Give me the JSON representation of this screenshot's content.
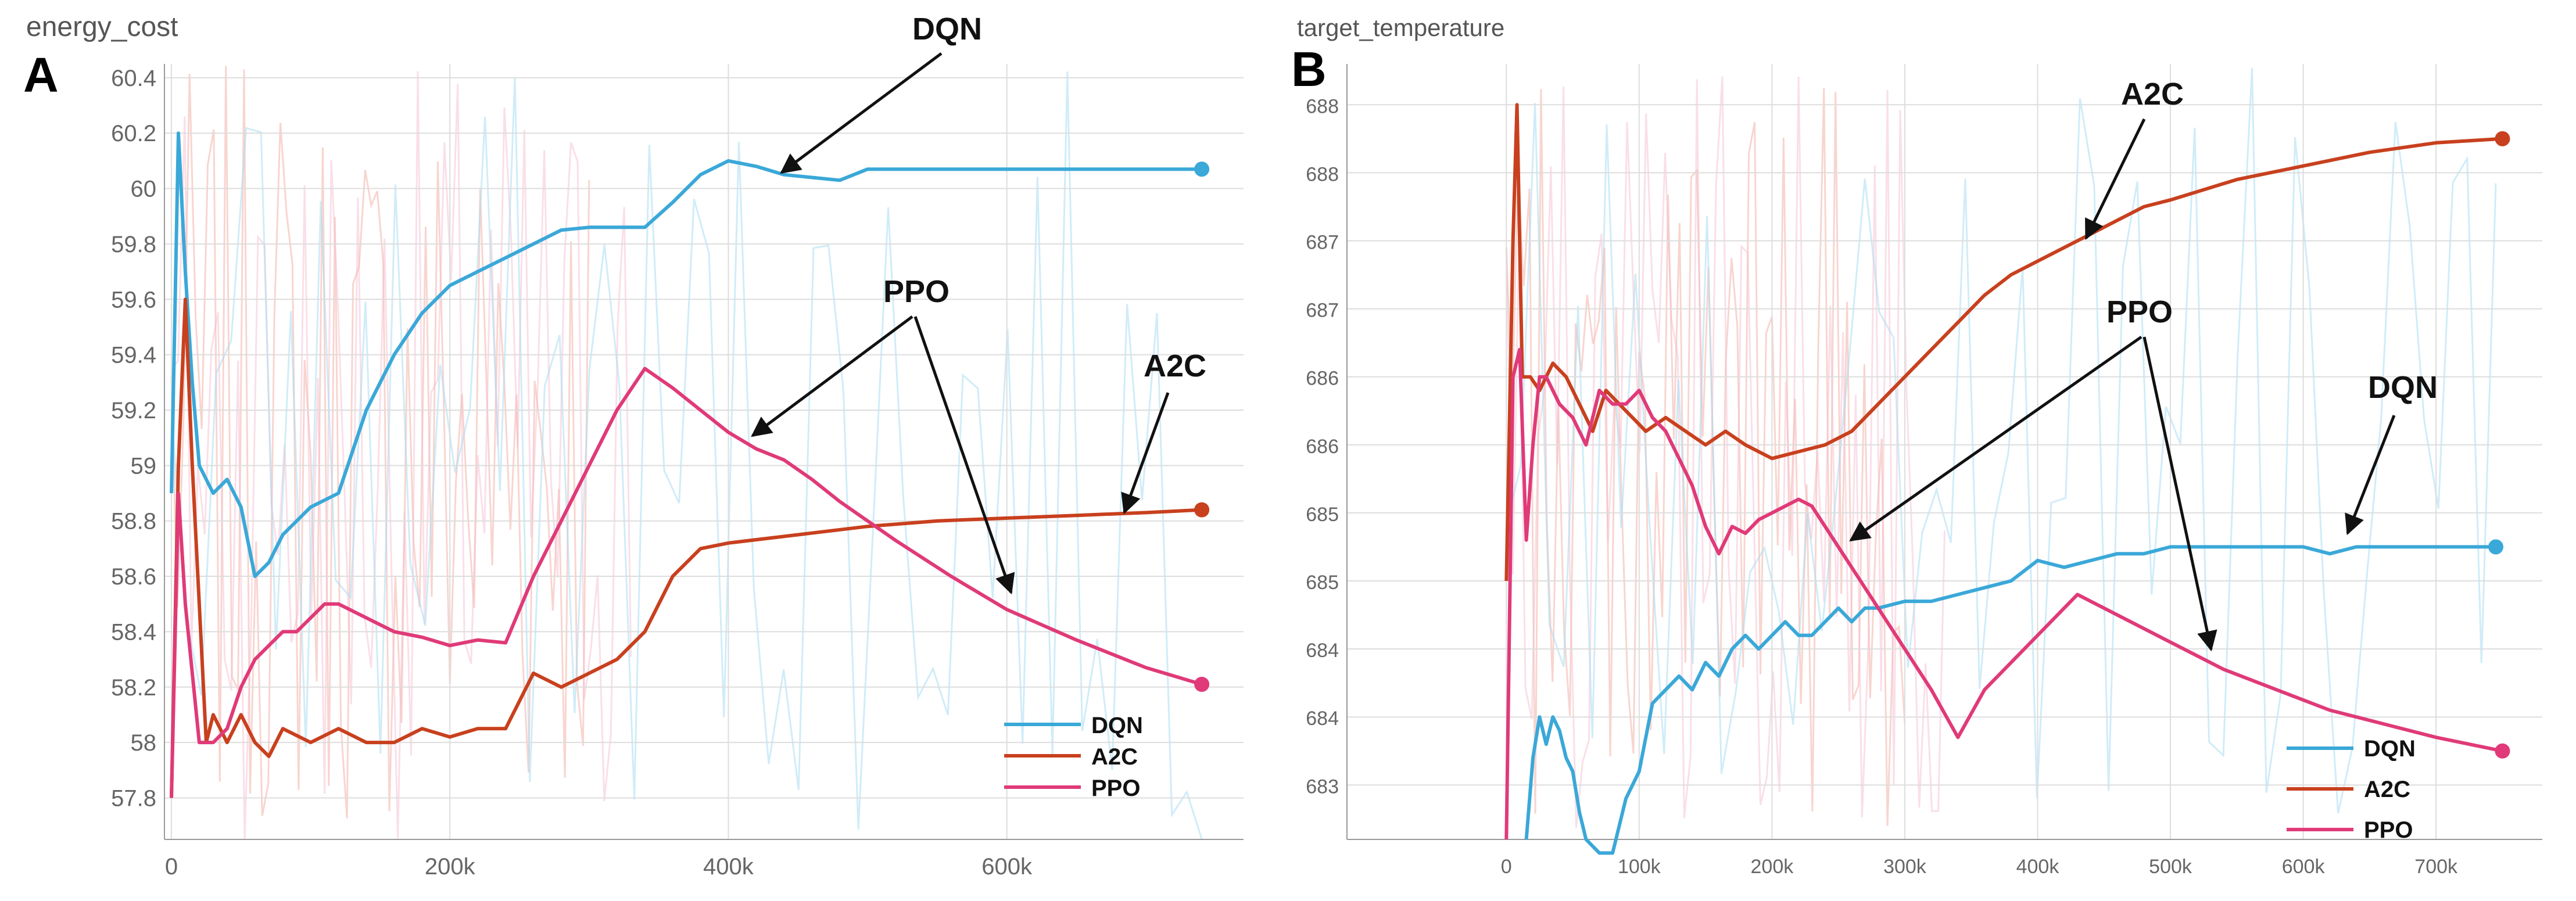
{
  "figure": {
    "panels": [
      "A",
      "B"
    ]
  },
  "chart_data": [
    {
      "panel": "A",
      "type": "line",
      "title": "energy_cost",
      "xlabel": "",
      "ylabel": "",
      "xlim": [
        -5000,
        770000
      ],
      "ylim": [
        57.65,
        60.45
      ],
      "x_tick_values": [
        0,
        200000,
        400000,
        600000
      ],
      "x_tick_labels": [
        "0",
        "200k",
        "400k",
        "600k"
      ],
      "y_tick_values": [
        57.8,
        58,
        58.2,
        58.4,
        58.6,
        58.8,
        59,
        59.2,
        59.4,
        59.6,
        59.8,
        60,
        60.2,
        60.4
      ],
      "y_tick_labels": [
        "57.8",
        "58",
        "58.2",
        "58.4",
        "58.6",
        "58.8",
        "59",
        "59.2",
        "59.4",
        "59.6",
        "59.8",
        "60",
        "60.2",
        "60.4"
      ],
      "grid": true,
      "legend": "bottom-right",
      "series": [
        {
          "name": "DQN",
          "color": "#3aa8d8",
          "x": [
            0,
            5000,
            10000,
            15000,
            20000,
            25000,
            30000,
            40000,
            50000,
            60000,
            70000,
            80000,
            90000,
            100000,
            120000,
            140000,
            160000,
            180000,
            200000,
            220000,
            240000,
            260000,
            280000,
            300000,
            320000,
            340000,
            360000,
            380000,
            400000,
            420000,
            440000,
            460000,
            480000,
            500000,
            550000,
            600000,
            650000,
            700000,
            740000
          ],
          "y": [
            58.9,
            60.2,
            59.7,
            59.3,
            59.0,
            58.95,
            58.9,
            58.95,
            58.85,
            58.6,
            58.65,
            58.75,
            58.8,
            58.85,
            58.9,
            59.2,
            59.4,
            59.55,
            59.65,
            59.7,
            59.75,
            59.8,
            59.85,
            59.86,
            59.86,
            59.86,
            59.95,
            60.05,
            60.1,
            60.08,
            60.05,
            60.04,
            60.03,
            60.07,
            60.07,
            60.07,
            60.07,
            60.07,
            60.07
          ]
        },
        {
          "name": "A2C",
          "color": "#c8401e",
          "x": [
            0,
            5000,
            10000,
            15000,
            20000,
            25000,
            30000,
            40000,
            50000,
            60000,
            70000,
            80000,
            100000,
            120000,
            140000,
            160000,
            180000,
            200000,
            220000,
            240000,
            260000,
            280000,
            300000,
            320000,
            340000,
            360000,
            380000,
            400000,
            450000,
            500000,
            550000,
            600000,
            650000,
            700000,
            740000
          ],
          "y": [
            57.8,
            59.0,
            59.6,
            59.0,
            58.5,
            58.0,
            58.1,
            58.0,
            58.1,
            58.0,
            57.95,
            58.05,
            58.0,
            58.05,
            58.0,
            58.0,
            58.05,
            58.02,
            58.05,
            58.05,
            58.25,
            58.2,
            58.25,
            58.3,
            58.4,
            58.6,
            58.7,
            58.72,
            58.75,
            58.78,
            58.8,
            58.81,
            58.82,
            58.83,
            58.84
          ]
        },
        {
          "name": "PPO",
          "color": "#e03a78",
          "x": [
            0,
            5000,
            10000,
            20000,
            30000,
            40000,
            50000,
            60000,
            70000,
            80000,
            90000,
            100000,
            110000,
            120000,
            140000,
            160000,
            180000,
            200000,
            220000,
            240000,
            260000,
            280000,
            300000,
            320000,
            340000,
            360000,
            380000,
            400000,
            420000,
            440000,
            460000,
            480000,
            500000,
            520000,
            560000,
            600000,
            650000,
            700000,
            740000
          ],
          "y": [
            57.8,
            58.9,
            58.5,
            58.0,
            58.0,
            58.05,
            58.2,
            58.3,
            58.35,
            58.4,
            58.4,
            58.45,
            58.5,
            58.5,
            58.45,
            58.4,
            58.38,
            58.35,
            58.37,
            58.36,
            58.6,
            58.8,
            59.0,
            59.2,
            59.35,
            59.28,
            59.2,
            59.12,
            59.06,
            59.02,
            58.95,
            58.87,
            58.8,
            58.73,
            58.6,
            58.48,
            58.37,
            58.27,
            58.21
          ]
        }
      ],
      "annotations": [
        {
          "text": "DQN"
        },
        {
          "text": "PPO"
        },
        {
          "text": "A2C"
        }
      ]
    },
    {
      "panel": "B",
      "type": "line",
      "title": "target_temperature",
      "xlabel": "",
      "ylabel": "",
      "xlim": [
        -120000,
        780000
      ],
      "ylim": [
        682.6,
        688.3
      ],
      "x_tick_values": [
        0,
        100000,
        200000,
        300000,
        400000,
        500000,
        600000,
        700000
      ],
      "x_tick_labels": [
        "0",
        "100k",
        "200k",
        "300k",
        "400k",
        "500k",
        "600k",
        "700k"
      ],
      "y_tick_values": [
        683,
        683.5,
        684,
        684.5,
        685,
        685.5,
        686,
        686.5,
        687,
        687.5,
        688
      ],
      "y_tick_labels": [
        "683",
        "684",
        "684",
        "685",
        "685",
        "686",
        "686",
        "687",
        "687",
        "688",
        "688"
      ],
      "grid": true,
      "legend": "bottom-right",
      "series": [
        {
          "name": "DQN",
          "color": "#3aa8d8",
          "x": [
            15000,
            20000,
            25000,
            30000,
            35000,
            40000,
            45000,
            50000,
            55000,
            60000,
            70000,
            80000,
            90000,
            100000,
            110000,
            120000,
            130000,
            140000,
            150000,
            160000,
            170000,
            180000,
            190000,
            200000,
            210000,
            220000,
            230000,
            240000,
            250000,
            260000,
            270000,
            280000,
            300000,
            320000,
            340000,
            360000,
            380000,
            400000,
            420000,
            440000,
            460000,
            480000,
            500000,
            550000,
            600000,
            620000,
            640000,
            700000,
            745000
          ],
          "y": [
            682.6,
            683.2,
            683.5,
            683.3,
            683.5,
            683.4,
            683.2,
            683.1,
            682.8,
            682.6,
            682.5,
            682.5,
            682.9,
            683.1,
            683.6,
            683.7,
            683.8,
            683.7,
            683.9,
            683.8,
            684.0,
            684.1,
            684.0,
            684.1,
            684.2,
            684.1,
            684.1,
            684.2,
            684.3,
            684.2,
            684.3,
            684.3,
            684.35,
            684.35,
            684.4,
            684.45,
            684.5,
            684.65,
            684.6,
            684.65,
            684.7,
            684.7,
            684.75,
            684.75,
            684.75,
            684.7,
            684.75,
            684.75,
            684.75
          ]
        },
        {
          "name": "A2C",
          "color": "#c8401e",
          "x": [
            0,
            5000,
            8000,
            12000,
            18000,
            25000,
            35000,
            45000,
            55000,
            65000,
            75000,
            85000,
            95000,
            105000,
            120000,
            135000,
            150000,
            165000,
            180000,
            200000,
            220000,
            240000,
            260000,
            280000,
            300000,
            320000,
            340000,
            360000,
            380000,
            400000,
            420000,
            440000,
            460000,
            480000,
            500000,
            550000,
            600000,
            650000,
            700000,
            750000
          ],
          "y": [
            684.5,
            687.0,
            688.0,
            686.0,
            686.0,
            685.9,
            686.1,
            686.0,
            685.8,
            685.6,
            685.9,
            685.8,
            685.7,
            685.6,
            685.7,
            685.6,
            685.5,
            685.6,
            685.5,
            685.4,
            685.45,
            685.5,
            685.6,
            685.8,
            686.0,
            686.2,
            686.4,
            686.6,
            686.75,
            686.85,
            686.95,
            687.05,
            687.15,
            687.25,
            687.3,
            687.45,
            687.55,
            687.65,
            687.72,
            687.75
          ]
        },
        {
          "name": "PPO",
          "color": "#e03a78",
          "x": [
            0,
            5000,
            10000,
            15000,
            20000,
            25000,
            30000,
            40000,
            50000,
            60000,
            70000,
            80000,
            90000,
            100000,
            110000,
            120000,
            130000,
            140000,
            150000,
            160000,
            170000,
            180000,
            190000,
            200000,
            210000,
            220000,
            230000,
            240000,
            260000,
            280000,
            300000,
            320000,
            340000,
            360000,
            380000,
            400000,
            420000,
            430000,
            460000,
            500000,
            540000,
            580000,
            620000,
            660000,
            700000,
            750000
          ],
          "y": [
            682.6,
            686.0,
            686.2,
            684.8,
            685.5,
            686.0,
            686.0,
            685.8,
            685.7,
            685.5,
            685.9,
            685.8,
            685.8,
            685.9,
            685.7,
            685.6,
            685.4,
            685.2,
            684.9,
            684.7,
            684.9,
            684.85,
            684.95,
            685.0,
            685.05,
            685.1,
            685.05,
            684.9,
            684.6,
            684.3,
            684.0,
            683.7,
            683.35,
            683.7,
            683.9,
            684.1,
            684.3,
            684.4,
            684.25,
            684.05,
            683.85,
            683.7,
            683.55,
            683.45,
            683.35,
            683.25
          ]
        }
      ],
      "annotations": [
        {
          "text": "A2C"
        },
        {
          "text": "PPO"
        },
        {
          "text": "DQN"
        }
      ]
    }
  ]
}
